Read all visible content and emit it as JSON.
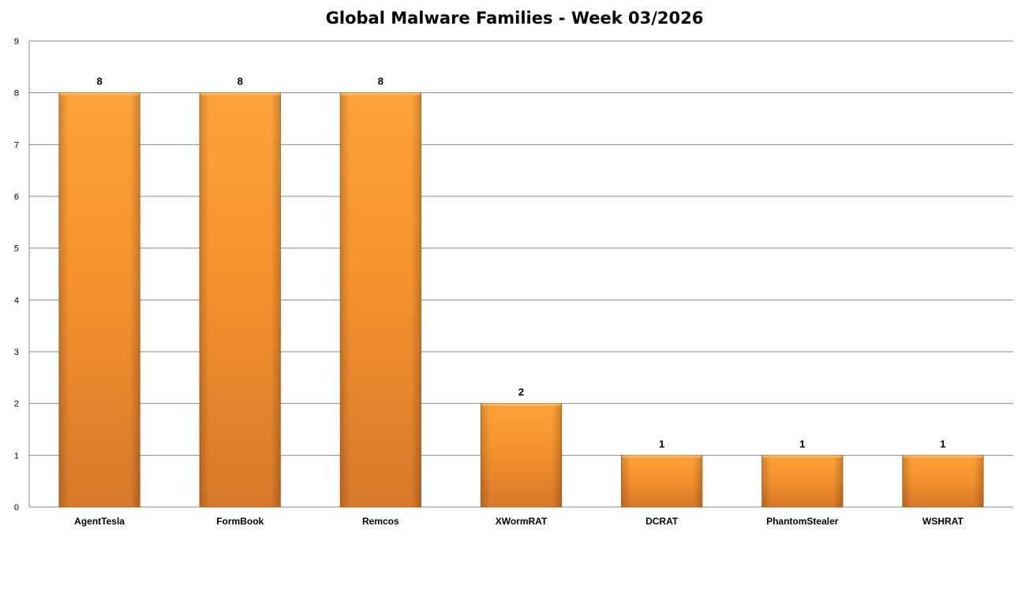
{
  "chart_data": {
    "type": "bar",
    "title": "Global Malware Families - Week 03/2026",
    "xlabel": "",
    "ylabel": "",
    "categories": [
      "AgentTesla",
      "FormBook",
      "Remcos",
      "XWormRAT",
      "DCRAT",
      "PhantomStealer",
      "WSHRAT"
    ],
    "values": [
      8,
      8,
      8,
      2,
      1,
      1,
      1
    ],
    "data_labels": [
      "8",
      "8",
      "8",
      "2",
      "1",
      "1",
      "1"
    ],
    "ylim": [
      0,
      9
    ],
    "yticks": [
      "0",
      "1",
      "2",
      "3",
      "4",
      "5",
      "6",
      "7",
      "8",
      "9"
    ],
    "grid": true,
    "legend": "none",
    "colors": {
      "bar_light": "#ffa23a",
      "bar_mid": "#f5922e",
      "bar_dark": "#d8782a",
      "bar_edge": "#b8661f",
      "gridline": "#8c8c8c",
      "axis": "#8c8c8c"
    }
  }
}
